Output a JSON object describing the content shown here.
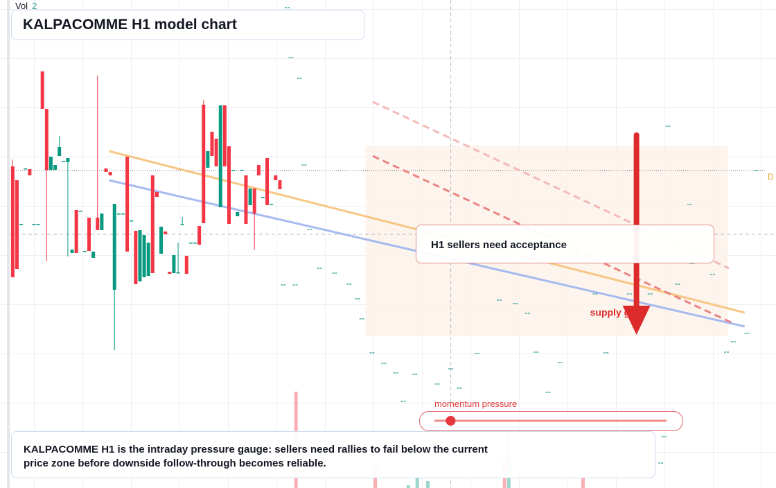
{
  "vol_label": "Vol",
  "vol_value": 2,
  "chart_data": {
    "type": "candlestick",
    "title": "KALPACOMME H1 model chart",
    "xlim": [
      -3,
      180
    ],
    "ylim": [
      0,
      704
    ],
    "up_color": "#089981",
    "down_color": "#f23645",
    "open": [
      464,
      444,
      381,
      461,
      460,
      381,
      381,
      601,
      547,
      459,
      459,
      479,
      472,
      470,
      339,
      401,
      400,
      342,
      390,
      332,
      390,
      372,
      461,
      456,
      286,
      396,
      396,
      478,
      386,
      371,
      298,
      304,
      306,
      451,
      427,
      338,
      370,
      312,
      310,
      311,
      381,
      335,
      354,
      354,
      378,
      553,
      462,
      514,
      504,
      405,
      552,
      493,
      459,
      392,
      459,
      451,
      408,
      432,
      466,
      420,
      476,
      410,
      451,
      444
    ],
    "high": [
      474,
      444,
      381,
      461,
      460,
      381,
      381,
      601,
      547,
      478,
      466,
      508,
      472,
      476,
      344,
      401,
      400,
      342,
      390,
      341,
      595,
      396,
      461,
      456,
      410,
      396,
      396,
      478,
      386,
      371,
      372,
      365,
      354,
      451,
      427,
      377,
      370,
      312,
      336,
      354,
      391,
      335,
      354,
      354,
      378,
      560,
      486,
      514,
      504,
      552,
      552,
      493,
      459,
      398,
      459,
      451,
      432,
      432,
      466,
      420,
      476,
      410,
      451,
      444
    ],
    "low": [
      304,
      316,
      381,
      461,
      451,
      381,
      381,
      547,
      327,
      459,
      459,
      479,
      472,
      334,
      339,
      339,
      400,
      342,
      342,
      332,
      372,
      372,
      456,
      451,
      199,
      396,
      396,
      341,
      386,
      294,
      298,
      304,
      306,
      310,
      420,
      338,
      366,
      309,
      310,
      311,
      381,
      309,
      354,
      354,
      351,
      382,
      462,
      479,
      464,
      405,
      464,
      381,
      459,
      392,
      459,
      381,
      408,
      344,
      451,
      420,
      408,
      410,
      444,
      431
    ],
    "close": [
      304,
      316,
      381,
      461,
      451,
      381,
      381,
      547,
      459,
      478,
      466,
      492,
      472,
      476,
      344,
      339,
      400,
      342,
      342,
      341,
      372,
      396,
      456,
      451,
      410,
      396,
      396,
      341,
      386,
      294,
      372,
      365,
      354,
      310,
      420,
      377,
      366,
      309,
      336,
      311,
      381,
      309,
      354,
      354,
      351,
      382,
      486,
      479,
      464,
      552,
      464,
      381,
      459,
      398,
      459,
      381,
      432,
      396,
      451,
      420,
      408,
      410,
      444,
      431
    ],
    "volume": {
      "x": [
        66.8,
        85.5,
        93.3,
        95.4,
        97.9,
        116,
        117,
        134.5
      ],
      "values": [
        139,
        34,
        4,
        14,
        10,
        44,
        76,
        14
      ],
      "colors": [
        "#f23645",
        "#f23645",
        "#089981",
        "#089981",
        "#089981",
        "#f23645",
        "#089981",
        "#f23645"
      ]
    },
    "trail": {
      "color": "#2a9d8f",
      "x": [
        64.8,
        65.7,
        67.7,
        68.8,
        70.1,
        63.9,
        66.7,
        72.4,
        76.0,
        79.4,
        81.4,
        82.4,
        84.8,
        87.6,
        90.4,
        94.9,
        100.2,
        103.4,
        105.4,
        92.2,
        109.6,
        114.8,
        118.6,
        121.5,
        123.5,
        129.2,
        126.3,
        137.4,
        140.0,
        145.5,
        150.4,
        154.6,
        159.7,
        160.2,
        165.1,
        168.4,
        170.0,
        173.2,
        153.7,
        152.9,
        156.9,
        175.4
      ],
      "y": [
        693,
        621,
        591,
        466,
        373,
        293,
        293,
        317,
        310,
        294,
        273,
        244,
        195,
        180,
        166,
        164,
        150,
        172,
        144,
        125,
        194,
        271,
        266,
        252,
        196,
        181,
        138,
        280,
        195,
        280,
        280,
        522,
        409,
        324,
        308,
        196,
        211,
        223,
        74,
        36,
        294,
        458
      ]
    },
    "lines": [
      {
        "x": [
          22.7,
          172.6
        ],
        "y": [
          486,
          253
        ],
        "color": "#f7c27a",
        "dash": false
      },
      {
        "x": [
          22.7,
          172.6
        ],
        "y": [
          444,
          233
        ],
        "color": "#9db4ef",
        "dash": false
      },
      {
        "x": [
          84.9,
          169.4
        ],
        "y": [
          479,
          239
        ],
        "color": "#e87a7a",
        "dash": true
      },
      {
        "x": [
          84.9,
          168.9
        ],
        "y": [
          557,
          317
        ],
        "color": "#f2b3b3",
        "dash": true
      }
    ],
    "price_line": {
      "value": 458,
      "label": "D",
      "color": "#f0a020"
    },
    "crosshair": {
      "x": 103.3,
      "y": 366
    },
    "zone": {
      "x": [
        83.2,
        168.6
      ],
      "y": [
        219,
        494
      ],
      "color": "#fdf1e8"
    },
    "arrow": {
      "x": 147.1,
      "y": [
        509,
        221
      ],
      "label": "supply gate",
      "color": "#dd2a2a"
    },
    "annotation": "H1 sellers need acceptance",
    "slider": {
      "label": "momentum pressure",
      "value": 7,
      "min": 0,
      "max": 100
    },
    "caption": "KALPACOMME H1 is the intraday pressure gauge: sellers need rallies to fail below the current price zone before downside follow-through becomes reliable."
  }
}
